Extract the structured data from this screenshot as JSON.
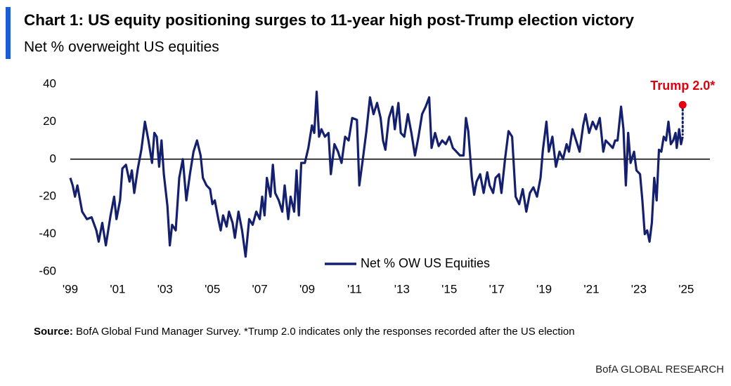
{
  "chart_data": {
    "type": "line",
    "title": "Chart 1: US equity positioning surges to 11-year high post-Trump election victory",
    "subtitle": "Net % overweight US equities",
    "source_label": "Source:",
    "source_text": "BofA Global Fund Manager Survey. *Trump 2.0 indicates only the responses recorded after the US election",
    "brand": "BofA GLOBAL RESEARCH",
    "xlim": [
      1999,
      2026
    ],
    "ylim": [
      -60,
      40
    ],
    "yticks": [
      40,
      20,
      0,
      -20,
      -40,
      -60
    ],
    "xticks": [
      {
        "value": 1999,
        "label": "'99"
      },
      {
        "value": 2001,
        "label": "'01"
      },
      {
        "value": 2003,
        "label": "'03"
      },
      {
        "value": 2005,
        "label": "'05"
      },
      {
        "value": 2007,
        "label": "'07"
      },
      {
        "value": 2009,
        "label": "'09"
      },
      {
        "value": 2011,
        "label": "'11"
      },
      {
        "value": 2013,
        "label": "'13"
      },
      {
        "value": 2015,
        "label": "'15"
      },
      {
        "value": 2017,
        "label": "'17"
      },
      {
        "value": 2019,
        "label": "'19"
      },
      {
        "value": 2021,
        "label": "'21"
      },
      {
        "value": 2023,
        "label": "'23"
      },
      {
        "value": 2025,
        "label": "'25"
      }
    ],
    "grid": false,
    "legend": "bottom-center",
    "x": [
      1999.0,
      1999.1,
      1999.2,
      1999.3,
      1999.5,
      1999.7,
      1999.9,
      2000.1,
      2000.2,
      2000.35,
      2000.5,
      2000.7,
      2000.85,
      2000.95,
      2001.1,
      2001.2,
      2001.35,
      2001.5,
      2001.6,
      2001.7,
      2001.85,
      2002.0,
      2002.15,
      2002.3,
      2002.45,
      2002.55,
      2002.65,
      2002.75,
      2002.85,
      2002.95,
      2003.1,
      2003.2,
      2003.3,
      2003.45,
      2003.6,
      2003.75,
      2003.9,
      2004.05,
      2004.2,
      2004.35,
      2004.5,
      2004.6,
      2004.75,
      2004.9,
      2005.0,
      2005.1,
      2005.25,
      2005.35,
      2005.45,
      2005.6,
      2005.7,
      2005.85,
      2005.95,
      2006.1,
      2006.25,
      2006.4,
      2006.55,
      2006.7,
      2006.85,
      2007.0,
      2007.1,
      2007.2,
      2007.3,
      2007.45,
      2007.55,
      2007.65,
      2007.8,
      2007.95,
      2008.05,
      2008.2,
      2008.3,
      2008.45,
      2008.55,
      2008.65,
      2008.75,
      2008.9,
      2009.05,
      2009.2,
      2009.3,
      2009.4,
      2009.5,
      2009.6,
      2009.75,
      2009.9,
      2010.0,
      2010.15,
      2010.3,
      2010.45,
      2010.6,
      2010.75,
      2010.9,
      2011.1,
      2011.2,
      2011.35,
      2011.5,
      2011.65,
      2011.8,
      2011.95,
      2012.1,
      2012.2,
      2012.3,
      2012.45,
      2012.6,
      2012.7,
      2012.85,
      2012.95,
      2013.1,
      2013.25,
      2013.4,
      2013.55,
      2013.7,
      2013.85,
      2014.0,
      2014.15,
      2014.25,
      2014.4,
      2014.55,
      2014.7,
      2014.85,
      2015.0,
      2015.15,
      2015.3,
      2015.45,
      2015.6,
      2015.7,
      2015.8,
      2015.95,
      2016.05,
      2016.15,
      2016.3,
      2016.45,
      2016.6,
      2016.7,
      2016.85,
      2016.95,
      2017.1,
      2017.2,
      2017.35,
      2017.5,
      2017.65,
      2017.8,
      2017.95,
      2018.1,
      2018.25,
      2018.4,
      2018.55,
      2018.7,
      2018.85,
      2018.95,
      2019.1,
      2019.2,
      2019.35,
      2019.5,
      2019.65,
      2019.8,
      2019.95,
      2020.05,
      2020.2,
      2020.35,
      2020.5,
      2020.65,
      2020.75,
      2020.9,
      2021.05,
      2021.2,
      2021.35,
      2021.5,
      2021.6,
      2021.75,
      2021.9,
      2022.0,
      2022.1,
      2022.25,
      2022.35,
      2022.45,
      2022.55,
      2022.65,
      2022.8,
      2022.9,
      2023.05,
      2023.15,
      2023.25,
      2023.35,
      2023.45,
      2023.55,
      2023.65,
      2023.75,
      2023.85,
      2023.95,
      2024.05,
      2024.15,
      2024.25,
      2024.35,
      2024.45,
      2024.55,
      2024.6,
      2024.7,
      2024.78,
      2024.85
    ],
    "series": [
      {
        "name": "Net % OW US Equities",
        "color": "#14206e",
        "values": [
          -10,
          -14,
          -20,
          -14,
          -28,
          -32,
          -31,
          -38,
          -44,
          -34,
          -46,
          -30,
          -20,
          -32,
          -22,
          -5,
          -3,
          -12,
          -6,
          -18,
          -5,
          5,
          20,
          10,
          -2,
          14,
          12,
          -4,
          10,
          -8,
          -25,
          -46,
          -35,
          -38,
          -10,
          0,
          -22,
          -8,
          4,
          10,
          2,
          -10,
          -14,
          -16,
          -24,
          -22,
          -32,
          -38,
          -30,
          -36,
          -28,
          -34,
          -42,
          -28,
          -38,
          -52,
          -32,
          -35,
          -28,
          -32,
          -20,
          -30,
          -10,
          -20,
          -3,
          -18,
          -22,
          -28,
          -14,
          -32,
          -20,
          -28,
          -6,
          -30,
          -2,
          -2,
          6,
          18,
          14,
          36,
          12,
          16,
          12,
          14,
          -8,
          8,
          4,
          -2,
          12,
          10,
          22,
          21,
          -14,
          0,
          15,
          33,
          24,
          30,
          22,
          10,
          5,
          22,
          28,
          16,
          30,
          14,
          12,
          24,
          14,
          2,
          12,
          24,
          28,
          33,
          6,
          14,
          7,
          10,
          8,
          12,
          6,
          4,
          2,
          2,
          22,
          15,
          -10,
          -19,
          -12,
          -8,
          -18,
          -7,
          -14,
          -18,
          -10,
          -8,
          -18,
          0,
          15,
          12,
          -20,
          -24,
          -16,
          -28,
          -18,
          -15,
          -20,
          -10,
          5,
          20,
          4,
          12,
          -4,
          4,
          0,
          8,
          4,
          16,
          10,
          4,
          18,
          24,
          14,
          20,
          16,
          22,
          4,
          10,
          8,
          6,
          10,
          10,
          28,
          16,
          -14,
          14,
          -2,
          4,
          -6,
          -8,
          -22,
          -40,
          -38,
          -44,
          -34,
          -10,
          -22,
          5,
          4,
          12,
          10,
          20,
          8,
          10,
          14,
          6,
          16,
          8,
          12
        ]
      }
    ],
    "annotation": {
      "label": "Trump 2.0*",
      "x": 2024.85,
      "value": 29,
      "color": "#e3000f"
    }
  }
}
